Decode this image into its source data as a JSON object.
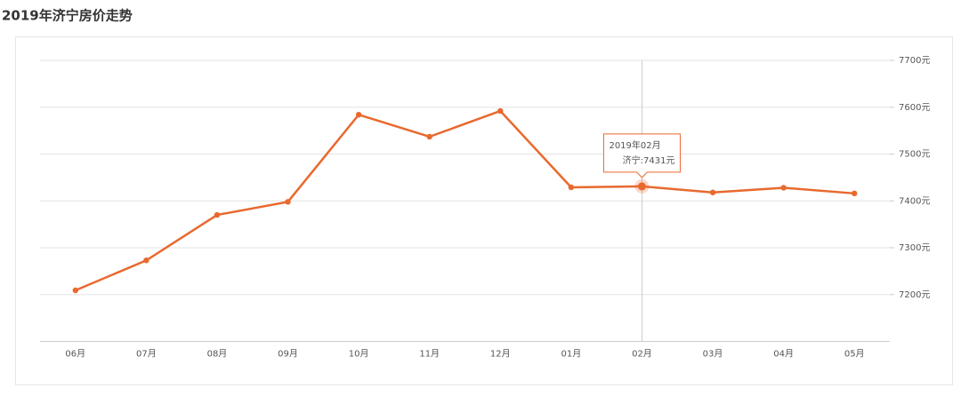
{
  "chart_data": {
    "type": "line",
    "title": "2019年济宁房价走势",
    "categories": [
      "06月",
      "07月",
      "08月",
      "09月",
      "10月",
      "11月",
      "12月",
      "01月",
      "02月",
      "03月",
      "04月",
      "05月"
    ],
    "values": [
      7209,
      7273,
      7370,
      7398,
      7584,
      7537,
      7592,
      7429,
      7431,
      7418,
      7428,
      7416
    ],
    "color": "#e8692e",
    "ylim": [
      7100,
      7700
    ],
    "yticks": [
      {
        "value": 7200,
        "label": "7200元"
      },
      {
        "value": 7300,
        "label": "7300元"
      },
      {
        "value": 7400,
        "label": "7400元"
      },
      {
        "value": 7500,
        "label": "7500元"
      },
      {
        "value": 7600,
        "label": "7600元"
      },
      {
        "value": 7700,
        "label": "7700元"
      }
    ],
    "grid": true,
    "tooltip": {
      "title": "2019年02月",
      "label": "济宁:7431元"
    }
  }
}
